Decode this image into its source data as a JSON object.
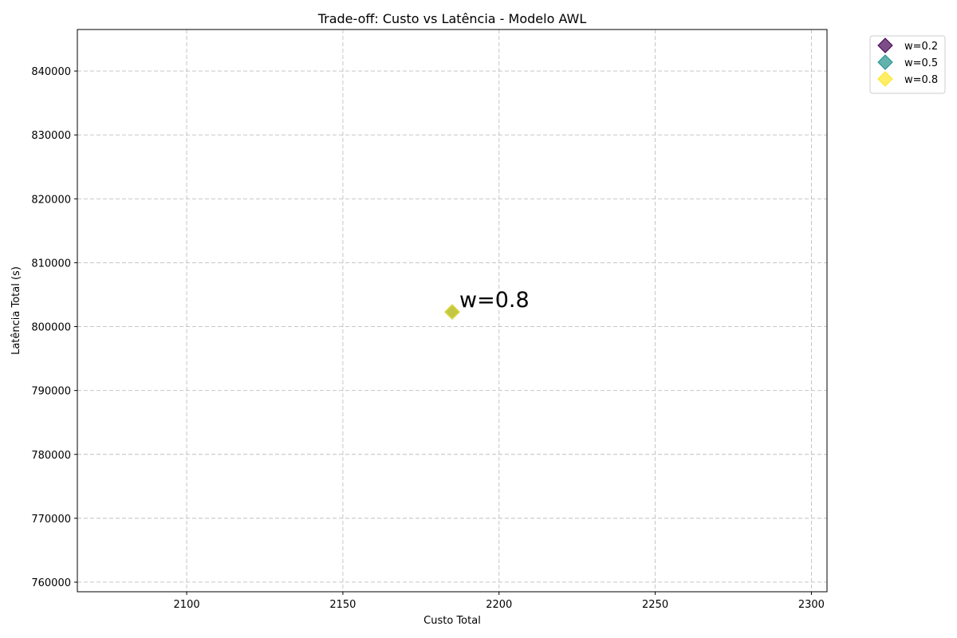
{
  "chart_data": {
    "type": "scatter",
    "title": "Trade-off: Custo vs Latência - Modelo AWL",
    "xlabel": "Custo Total",
    "ylabel": "Latência Total (s)",
    "xlim": [
      2065,
      2305
    ],
    "ylim": [
      758500,
      846500
    ],
    "xticks": [
      2100,
      2150,
      2200,
      2250,
      2300
    ],
    "yticks": [
      760000,
      770000,
      780000,
      790000,
      800000,
      810000,
      820000,
      830000,
      840000
    ],
    "grid": true,
    "legend_position": "outside-top-right",
    "marker": "diamond",
    "series": [
      {
        "name": "w=0.2",
        "color": "#440154",
        "points": [
          {
            "x": 2185,
            "y": 802300
          }
        ]
      },
      {
        "name": "w=0.5",
        "color": "#21918c",
        "points": [
          {
            "x": 2185,
            "y": 802300
          }
        ]
      },
      {
        "name": "w=0.8",
        "color": "#fde725",
        "points": [
          {
            "x": 2185,
            "y": 802300
          }
        ]
      }
    ],
    "annotations": [
      {
        "text": "w=0.8",
        "x": 2185,
        "y": 802300
      }
    ]
  }
}
